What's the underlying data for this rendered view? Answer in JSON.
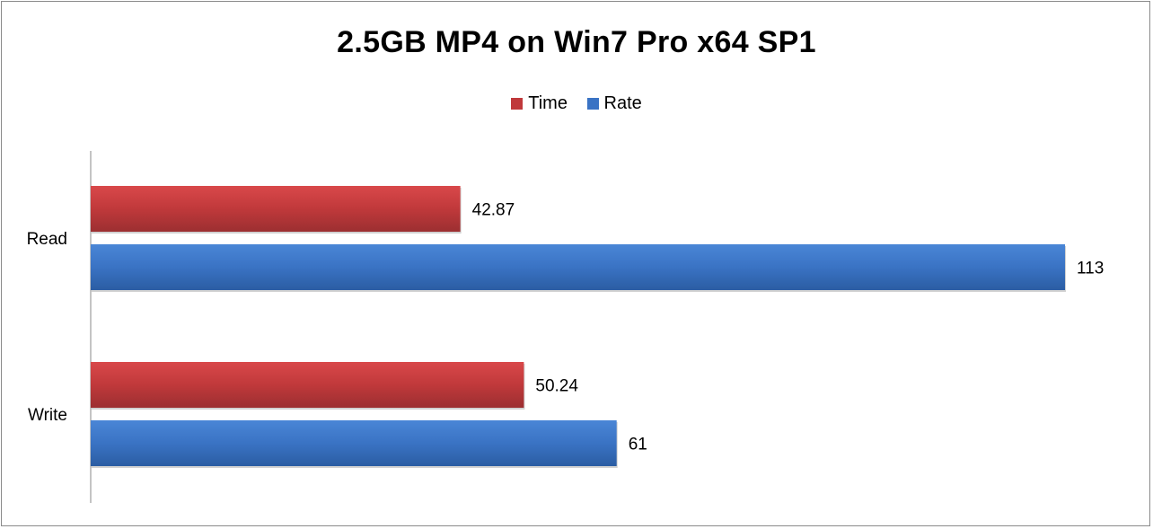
{
  "chart_data": {
    "type": "bar",
    "orientation": "horizontal",
    "title": "2.5GB MP4 on Win7 Pro x64 SP1",
    "categories": [
      "Read",
      "Write"
    ],
    "series": [
      {
        "name": "Time",
        "color": "#c0393b",
        "values": [
          42.87,
          50.24
        ]
      },
      {
        "name": "Rate",
        "color": "#3a73c4",
        "values": [
          113,
          61
        ]
      }
    ],
    "data_labels": [
      [
        "42.87",
        "113"
      ],
      [
        "50.24",
        "61"
      ]
    ],
    "xlim": [
      0,
      113
    ],
    "grid": false,
    "legend": "top-center"
  }
}
